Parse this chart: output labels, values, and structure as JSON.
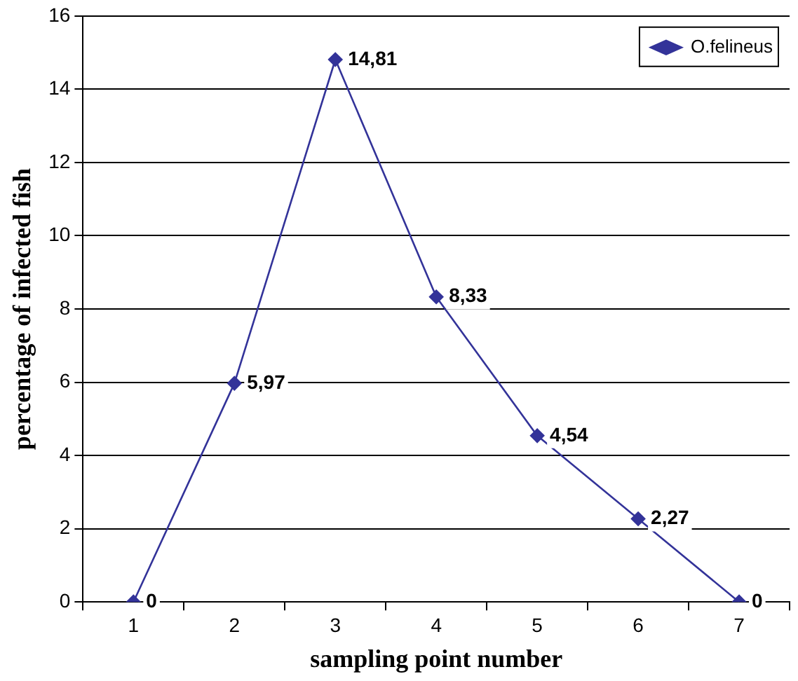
{
  "chart_data": {
    "type": "line",
    "xlabel": "sampling point number",
    "ylabel": "percentage of infected fish",
    "categories": [
      "1",
      "2",
      "3",
      "4",
      "5",
      "6",
      "7"
    ],
    "series": [
      {
        "name": "O.felineus",
        "color": "#333399",
        "values": [
          0,
          5.97,
          14.81,
          8.33,
          4.54,
          2.27,
          0
        ],
        "value_labels": [
          "0",
          "5,97",
          "14,81",
          "8,33",
          "4,54",
          "2,27",
          "0"
        ]
      }
    ],
    "ylim": [
      0,
      16
    ],
    "yticks": [
      0,
      2,
      4,
      6,
      8,
      10,
      12,
      14,
      16
    ],
    "grid": "y",
    "legend": "top right",
    "marker": "diamond",
    "line_style": "solid"
  }
}
